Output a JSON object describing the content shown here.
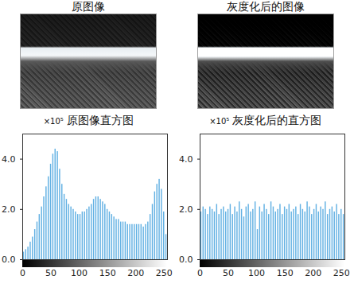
{
  "images": [
    {
      "title": "原图像"
    },
    {
      "title": "灰度化后的图像"
    }
  ],
  "chart_data": [
    {
      "type": "histogram",
      "title": "原图像直方图",
      "ylabel": "×10⁵",
      "color": "#63b1e3",
      "bins": [
        0,
        4,
        8,
        12,
        16,
        20,
        24,
        28,
        32,
        36,
        40,
        44,
        48,
        52,
        56,
        60,
        64,
        68,
        72,
        76,
        80,
        84,
        88,
        92,
        96,
        100,
        104,
        108,
        112,
        116,
        120,
        124,
        128,
        132,
        136,
        140,
        144,
        148,
        152,
        156,
        160,
        164,
        168,
        172,
        176,
        180,
        184,
        188,
        192,
        196,
        200,
        204,
        208,
        212,
        216,
        220,
        224,
        228,
        232,
        236,
        240,
        244,
        248,
        252,
        256
      ],
      "values": [
        0.3,
        0.4,
        0.5,
        0.7,
        0.9,
        1.2,
        1.5,
        1.8,
        2.1,
        2.5,
        2.9,
        3.3,
        3.8,
        4.2,
        4.4,
        4.3,
        3.6,
        3.0,
        2.6,
        2.4,
        2.2,
        2.1,
        2.0,
        1.9,
        1.8,
        1.8,
        1.9,
        1.9,
        2.0,
        2.1,
        2.2,
        2.4,
        2.5,
        2.5,
        2.4,
        2.3,
        2.2,
        2.0,
        1.9,
        1.8,
        1.7,
        1.6,
        1.6,
        1.5,
        1.5,
        1.5,
        1.4,
        1.4,
        1.4,
        1.4,
        1.4,
        1.4,
        1.4,
        1.3,
        1.4,
        1.5,
        1.8,
        2.2,
        2.7,
        3.0,
        3.2,
        2.8,
        1.9,
        1.0
      ],
      "xlim": [
        0,
        256
      ],
      "xticks": [
        0,
        50,
        100,
        150,
        200,
        250
      ],
      "ylim": [
        0,
        5
      ],
      "yticks": [
        0,
        2,
        4
      ]
    },
    {
      "type": "histogram",
      "title": "灰度化后的直方图",
      "ylabel": "×10⁵",
      "color": "#63b1e3",
      "bins": [
        0,
        4,
        8,
        12,
        16,
        20,
        24,
        28,
        32,
        36,
        40,
        44,
        48,
        52,
        56,
        60,
        64,
        68,
        72,
        76,
        80,
        84,
        88,
        92,
        96,
        100,
        104,
        108,
        112,
        116,
        120,
        124,
        128,
        132,
        136,
        140,
        144,
        148,
        152,
        156,
        160,
        164,
        168,
        172,
        176,
        180,
        184,
        188,
        192,
        196,
        200,
        204,
        208,
        212,
        216,
        220,
        224,
        228,
        232,
        236,
        240,
        244,
        248,
        252,
        256
      ],
      "values": [
        1.9,
        2.1,
        2.0,
        1.8,
        2.1,
        2.0,
        1.9,
        2.2,
        1.8,
        2.0,
        2.1,
        1.9,
        2.0,
        2.2,
        1.8,
        2.1,
        1.9,
        2.3,
        2.0,
        1.7,
        2.1,
        2.2,
        1.9,
        2.0,
        2.3,
        1.2,
        2.1,
        1.9,
        2.2,
        2.0,
        1.8,
        2.3,
        2.1,
        1.9,
        2.0,
        2.2,
        1.8,
        2.1,
        2.0,
        2.2,
        1.9,
        2.0,
        2.1,
        1.8,
        2.2,
        2.0,
        1.9,
        2.3,
        2.1,
        1.8,
        2.0,
        2.2,
        1.9,
        2.1,
        2.0,
        2.3,
        1.8,
        2.0,
        2.1,
        1.9,
        2.2,
        1.8,
        2.0,
        1.8
      ],
      "xlim": [
        0,
        256
      ],
      "xticks": [
        0,
        50,
        100,
        150,
        200,
        250
      ],
      "ylim": [
        0,
        5
      ],
      "yticks": [
        0,
        2,
        4
      ]
    }
  ]
}
